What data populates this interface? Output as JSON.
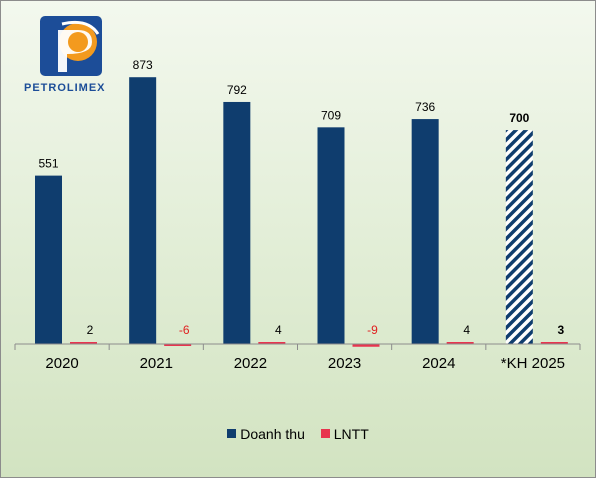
{
  "brand": {
    "logo_text": "PETROLIMEX"
  },
  "colors": {
    "doanh_thu": "#0f3d6e",
    "lntt": "#e8344e",
    "negative_label": "#e02020"
  },
  "chart_data": {
    "type": "bar",
    "title": "",
    "xlabel": "",
    "ylabel": "",
    "categories": [
      "2020",
      "2021",
      "2022",
      "2023",
      "2024",
      "*KH 2025"
    ],
    "series": [
      {
        "name": "Doanh thu",
        "values": [
          551,
          873,
          792,
          709,
          736,
          700
        ],
        "style": [
          "solid",
          "solid",
          "solid",
          "solid",
          "solid",
          "hatched"
        ]
      },
      {
        "name": "LNTT",
        "values": [
          2,
          -6,
          4,
          -9,
          4,
          3
        ]
      }
    ],
    "data_labels": {
      "doanh_thu": [
        "551",
        "873",
        "792",
        "709",
        "736",
        "700"
      ],
      "lntt": [
        "2",
        "-6",
        "4",
        "-9",
        "4",
        "3"
      ]
    },
    "bold_categories": [
      "*KH 2025"
    ],
    "ylim": [
      -10,
      1000
    ],
    "grid": false,
    "legend_position": "bottom"
  }
}
